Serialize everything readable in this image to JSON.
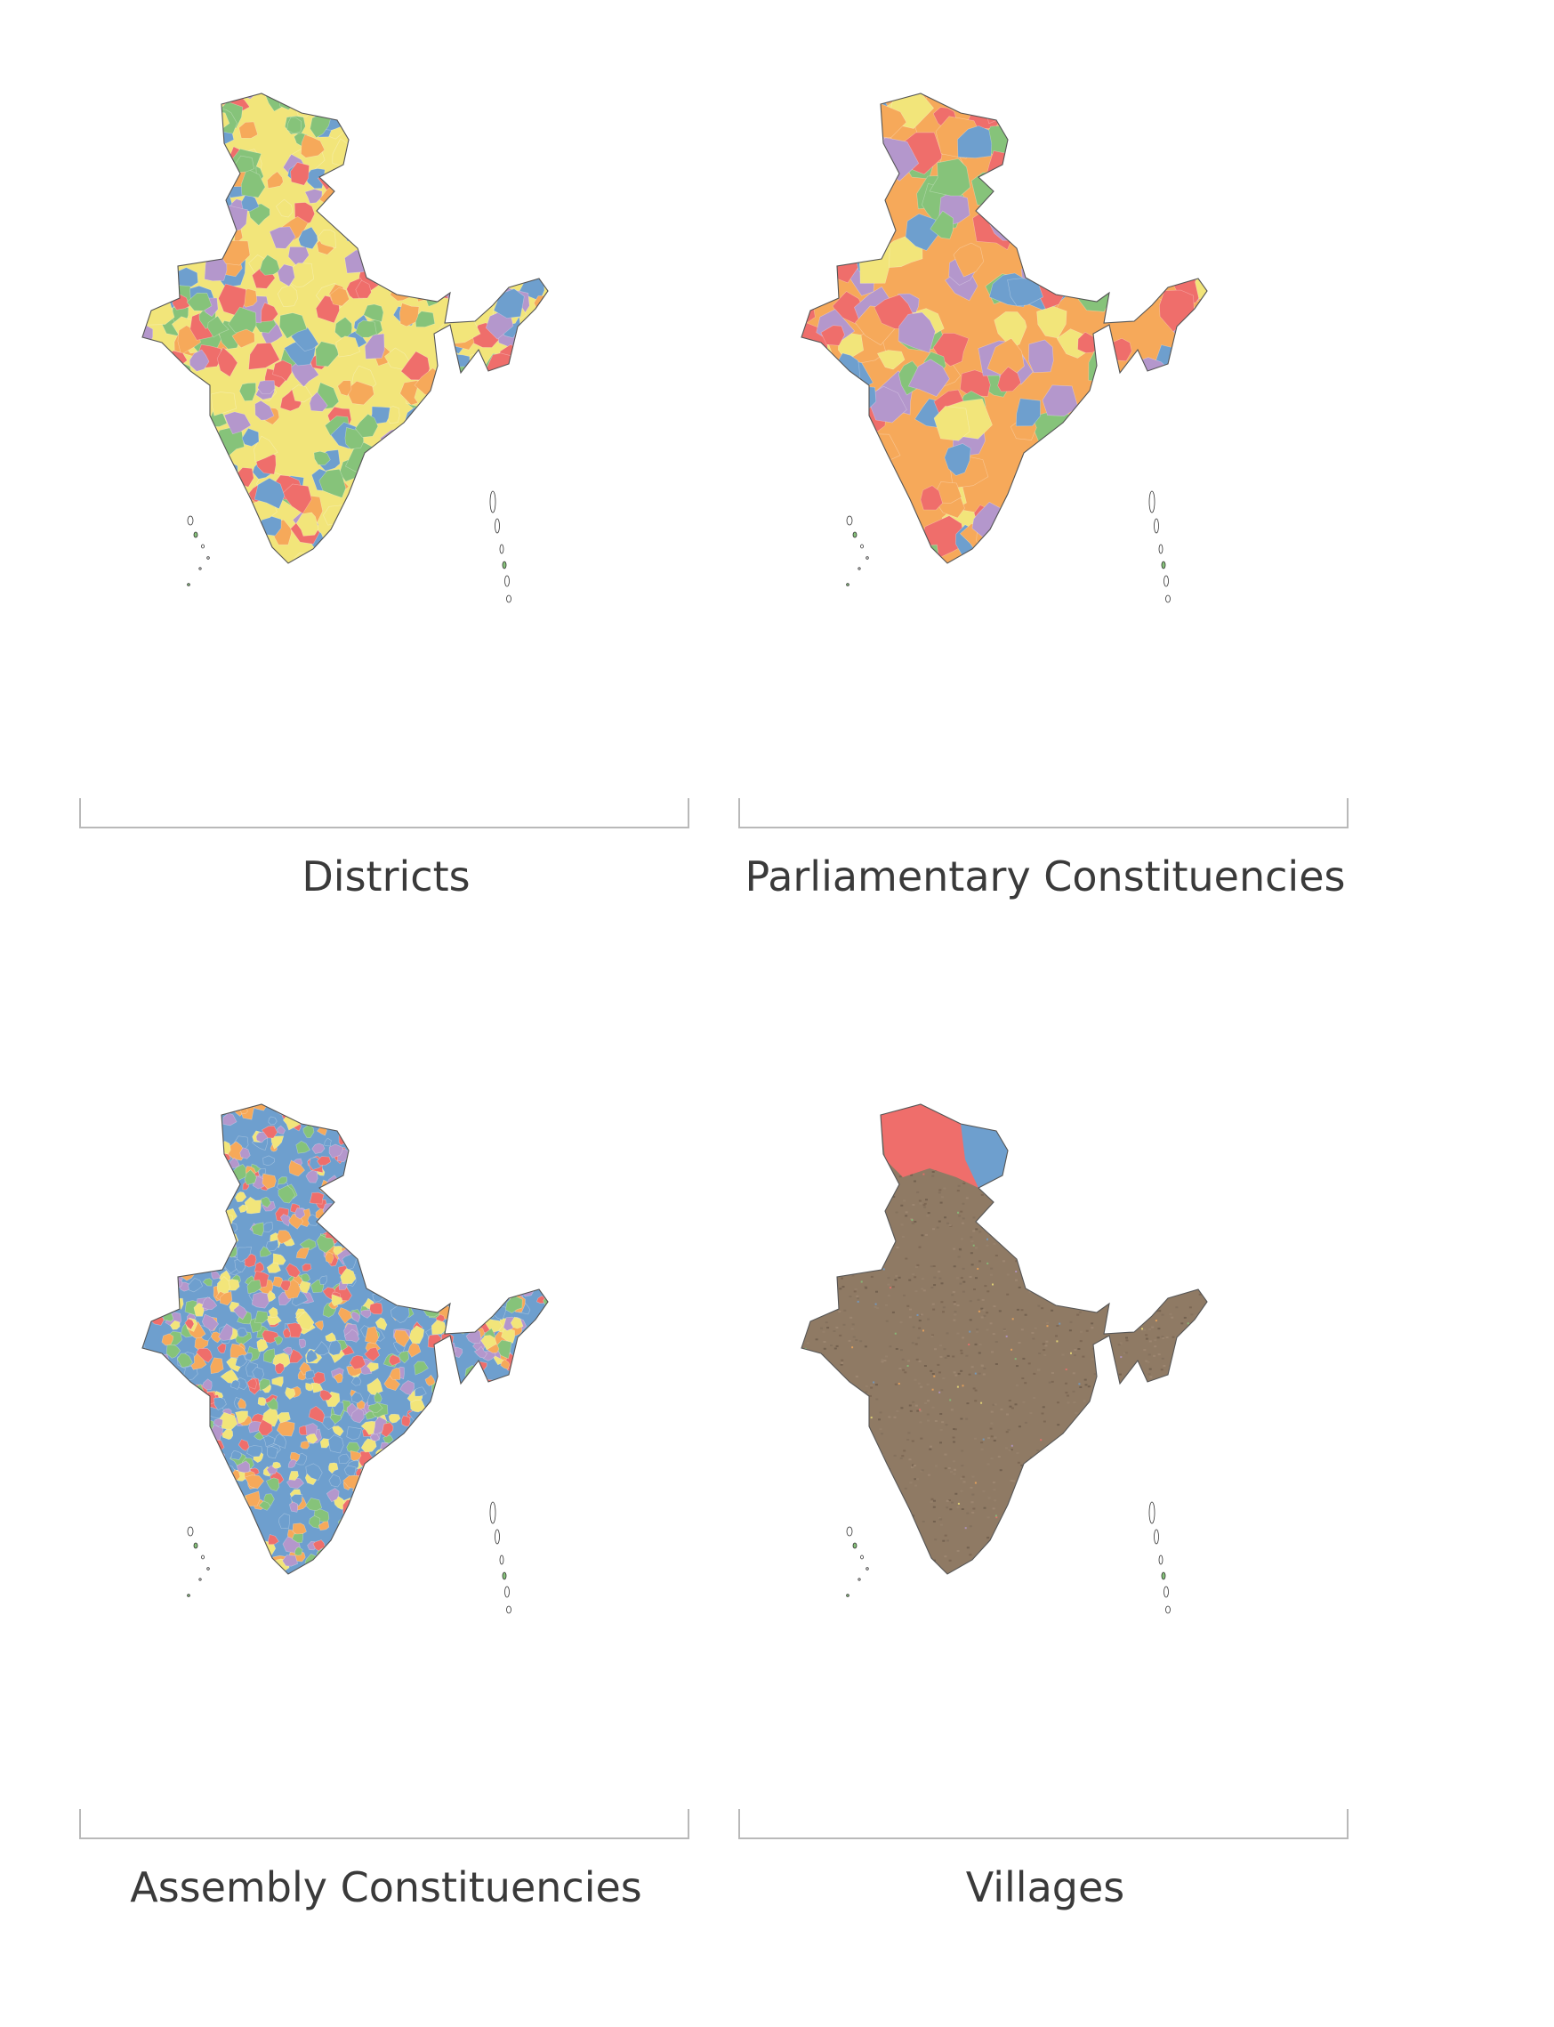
{
  "palette": [
    "#6e9fce",
    "#ef6e6b",
    "#f2e57a",
    "#f6a95a",
    "#86c37a",
    "#b497cc"
  ],
  "panels": [
    {
      "label": "Districts",
      "style": "patchwork-medium",
      "base_color": "#f2e57a"
    },
    {
      "label": "Parliamentary Constituencies",
      "style": "patchwork-coarse",
      "base_color": "#f6a95a"
    },
    {
      "label": "Assembly Constituencies",
      "style": "patchwork-fine",
      "base_color": "#6e9fce"
    },
    {
      "label": "Villages",
      "style": "dense-texture",
      "base_color": "#8f7a64"
    }
  ]
}
